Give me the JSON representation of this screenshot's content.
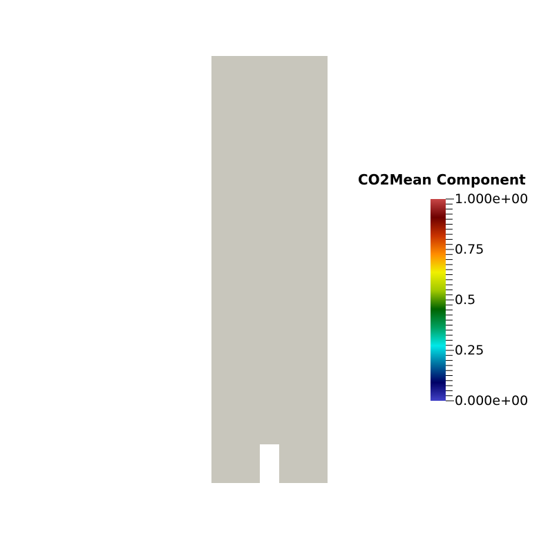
{
  "background_color": "#ffffff",
  "geometry_color": "#c8c6bc",
  "colorbar": {
    "title": "CO2Mean Component",
    "range": [
      0,
      1
    ],
    "labels": [
      {
        "text": "1.000e+00",
        "value": 1.0
      },
      {
        "text": "0.75",
        "value": 0.75
      },
      {
        "text": "0.5",
        "value": 0.5
      },
      {
        "text": "0.25",
        "value": 0.25
      },
      {
        "text": "0.000e+00",
        "value": 0.0
      }
    ],
    "colormap": "jet-like",
    "color_stops": [
      "#4242c8",
      "#000066",
      "#0070a0",
      "#00e8e8",
      "#00a060",
      "#006400",
      "#a0c800",
      "#f0f000",
      "#ff8c00",
      "#c83200",
      "#6e0000",
      "#c84646"
    ]
  }
}
